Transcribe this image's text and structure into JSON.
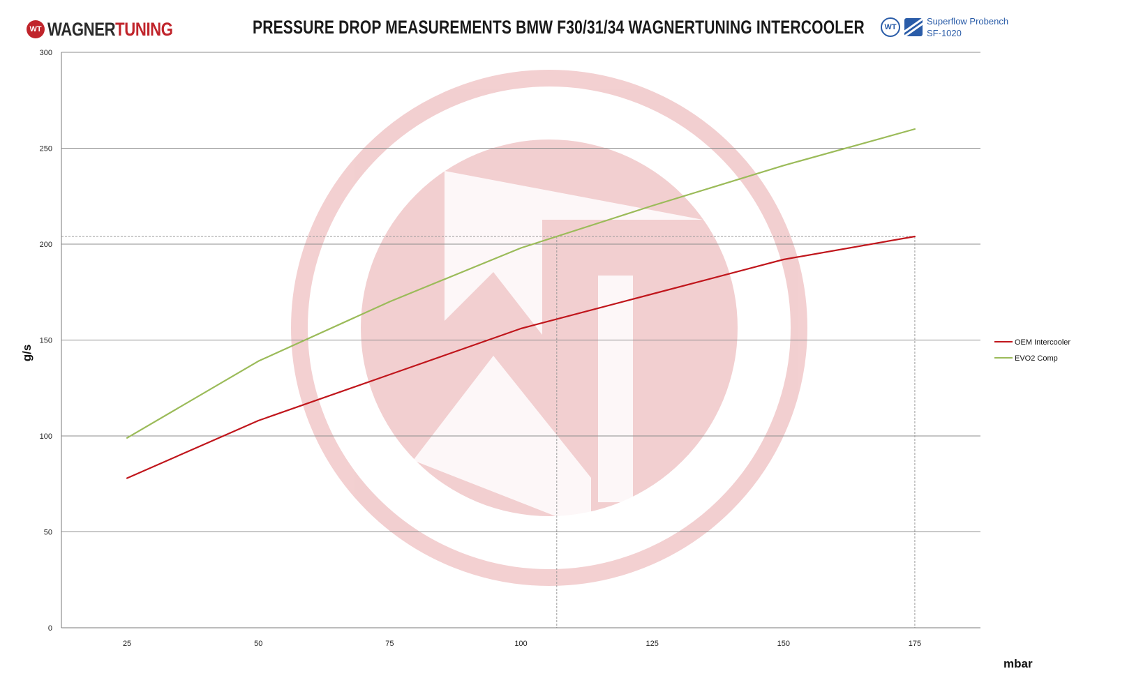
{
  "header": {
    "brand_part1": "WAGNER",
    "brand_part2": "TUNING",
    "brand_mark": "WT",
    "title": "PRESSURE DROP MEASUREMENTS  BMW F30/31/34 WAGNERTUNING INTERCOOLER",
    "bench_mark": "WT",
    "bench_line1": "Superflow Probench",
    "bench_line2": "SF-1020"
  },
  "colors": {
    "oem": "#c0161c",
    "evo": "#9bbb59",
    "watermark": "#c8292f"
  },
  "chart_data": {
    "type": "line",
    "title": "PRESSURE DROP MEASUREMENTS  BMW F30/31/34 WAGNERTUNING INTERCOOLER",
    "xlabel": "mbar",
    "ylabel": "g/s",
    "x": [
      25,
      50,
      75,
      100,
      125,
      150,
      175
    ],
    "x_tick_labels": [
      "25",
      "50",
      "75",
      "100",
      "125",
      "150",
      "175"
    ],
    "y_ticks": [
      0,
      50,
      100,
      150,
      200,
      250,
      300
    ],
    "y_tick_labels": [
      "0",
      "50",
      "100",
      "150",
      "200",
      "250",
      "300"
    ],
    "xlim": [
      12.5,
      187.5
    ],
    "ylim": [
      0,
      300
    ],
    "grid": true,
    "legend_position": "right",
    "series": [
      {
        "name": "OEM Intercooler",
        "color": "#c0161c",
        "values": [
          78,
          108,
          132,
          156,
          174,
          192,
          204
        ]
      },
      {
        "name": "EVO2 Comp",
        "color": "#9bbb59",
        "values": [
          99,
          139,
          170,
          198,
          220,
          241,
          260
        ]
      }
    ],
    "reference_value": 204
  }
}
